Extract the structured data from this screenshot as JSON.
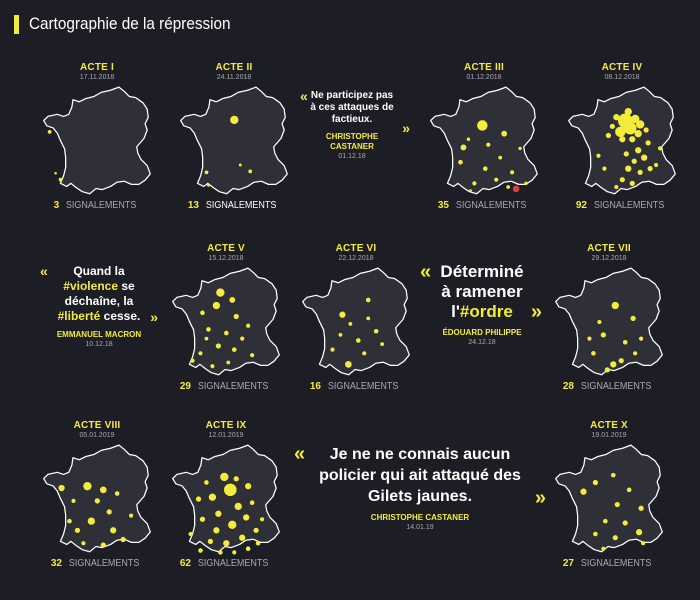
{
  "header": {
    "title": "Cartographie de la répression"
  },
  "colors": {
    "accent": "#f4ec3a",
    "background": "#1d1d25",
    "map_fill": "#2f2f37",
    "red_dot": "#e13a3a"
  },
  "chart_data": [
    {
      "type": "scatter",
      "acte": "ACTE I",
      "date": "17.11.2018",
      "count": "3",
      "label": "SIGNALEMENTS"
    },
    {
      "type": "scatter",
      "acte": "ACTE II",
      "date": "24.11.2018",
      "count": "13",
      "label": "SIGNALEMENTS"
    },
    {
      "type": "scatter",
      "acte": "ACTE III",
      "date": "01.12.2018",
      "count": "35",
      "label": "SIGNALEMENTS"
    },
    {
      "type": "scatter",
      "acte": "ACTE IV",
      "date": "08.12.2018",
      "count": "92",
      "label": "SIGNALEMENTS"
    },
    {
      "type": "scatter",
      "acte": "ACTE V",
      "date": "15.12.2018",
      "count": "29",
      "label": "SIGNALEMENTS"
    },
    {
      "type": "scatter",
      "acte": "ACTE VI",
      "date": "22.12.2018",
      "count": "16",
      "label": "SIGNALEMENTS"
    },
    {
      "type": "scatter",
      "acte": "ACTE VII",
      "date": "29.12.2018",
      "count": "28",
      "label": "SIGNALEMENTS"
    },
    {
      "type": "scatter",
      "acte": "ACTE VIII",
      "date": "05.01.2019",
      "count": "32",
      "label": "SIGNALEMENTS"
    },
    {
      "type": "scatter",
      "acte": "ACTE IX",
      "date": "12.01.2019",
      "count": "62",
      "label": "SIGNALEMENTS"
    },
    {
      "type": "scatter",
      "acte": "ACTE X",
      "date": "19.01.2019",
      "count": "27",
      "label": "SIGNALEMENTS"
    }
  ],
  "quotes": {
    "q1": {
      "open": "«",
      "line1": "Ne participez pas",
      "line2": "à ces attaques de",
      "line3": "factieux.",
      "close": "»",
      "author1": "CHRISTOPHE",
      "author2": "CASTANER",
      "date": "01.12.18"
    },
    "q2": {
      "open": "«",
      "l1": "Quand la",
      "hl1": "#violence",
      "l2a": " se",
      "l3": "déchaîne, la",
      "hl2": "#liberté",
      "l4": " cesse.",
      "close": "»",
      "author": "EMMANUEL MACRON",
      "date": "10.12.18"
    },
    "q3": {
      "open": "«",
      "l1": "Déterminé",
      "l2": "à ramener",
      "l3a": "l'",
      "hl": "#ordre",
      "close": "»",
      "author": "ÉDOUARD PHILIPPE",
      "date": "24.12.18"
    },
    "q4": {
      "open": "«",
      "l1": "Je ne ne connais aucun",
      "l2": "policier qui ait attaqué des",
      "l3": "Gilets jaunes.",
      "close": "»",
      "author": "CHRISTOPHE CASTANER",
      "date": "14.01.19"
    }
  }
}
